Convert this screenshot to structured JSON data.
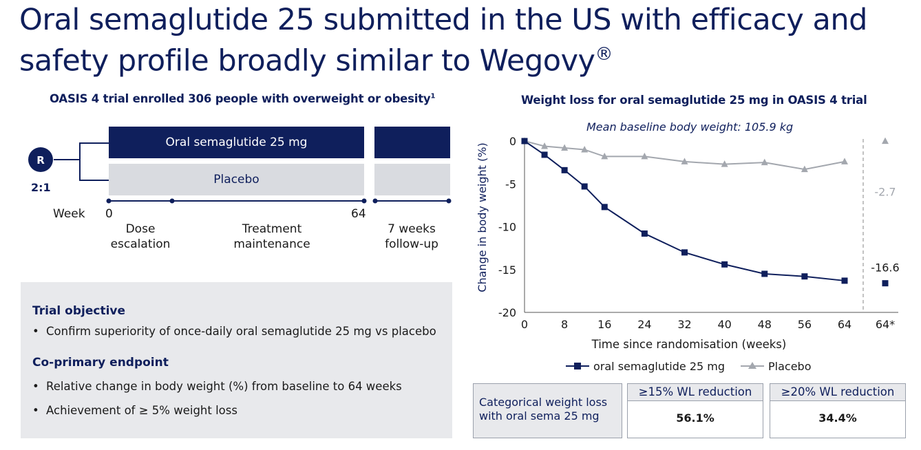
{
  "title": "Oral semaglutide 25 submitted in the US with efficacy and safety profile broadly similar to Wegovy",
  "title_mark": "®",
  "trial": {
    "heading": "OASIS 4 trial enrolled 306 people with overweight or obesity",
    "heading_sup": "1",
    "randomisation_badge": "R",
    "ratio": "2:1",
    "arms": [
      "Oral semaglutide 25 mg",
      "Placebo"
    ],
    "week_label": "Week",
    "week_start": "0",
    "week_end": "64",
    "phases": [
      {
        "line1": "Dose",
        "line2": "escalation"
      },
      {
        "line1": "Treatment",
        "line2": "maintenance"
      },
      {
        "line1": "7 weeks",
        "line2": "follow-up"
      }
    ],
    "colors": {
      "treatment": "#0f1f5c",
      "placebo": "#d9dbe0"
    }
  },
  "objective_box": {
    "objective_heading": "Trial objective",
    "objective_items": [
      "Confirm superiority of once-daily oral semaglutide 25 mg vs placebo"
    ],
    "endpoint_heading": "Co-primary endpoint",
    "endpoint_items": [
      "Relative change in body weight (%) from baseline to 64 weeks",
      "Achievement of ≥ 5% weight loss"
    ],
    "bullet": "•"
  },
  "chart_data": {
    "type": "line",
    "title": "Weight loss for oral semaglutide 25 mg in OASIS 4 trial",
    "subtitle": "Mean baseline body weight: 105.9 kg",
    "xlabel": "Time since randomisation (weeks)",
    "ylabel": "Change in body weight (%)",
    "xlim": [
      0,
      64
    ],
    "ylim": [
      -20,
      0
    ],
    "xticks": [
      "0",
      "8",
      "16",
      "24",
      "32",
      "40",
      "48",
      "56",
      "64"
    ],
    "yticks": [
      "0",
      "-5",
      "-10",
      "-15",
      "-20"
    ],
    "extra_xtick": "64*",
    "grid": false,
    "legend": "bottom",
    "series": [
      {
        "name": "oral semaglutide 25 mg",
        "color": "#0f1f5c",
        "marker": "square",
        "x": [
          0,
          4,
          8,
          12,
          16,
          24,
          32,
          40,
          48,
          56,
          64
        ],
        "values": [
          0,
          -1.6,
          -3.4,
          -5.3,
          -7.7,
          -10.8,
          -13.0,
          -14.4,
          -15.5,
          -15.8,
          -16.3
        ],
        "endpoint_value": -16.6,
        "endpoint_label": "-16.6"
      },
      {
        "name": "Placebo",
        "color": "#a3a7ae",
        "marker": "triangle",
        "x": [
          0,
          4,
          8,
          12,
          16,
          24,
          32,
          40,
          48,
          56,
          64
        ],
        "values": [
          0,
          -0.6,
          -0.8,
          -1.0,
          -1.8,
          -1.8,
          -2.4,
          -2.7,
          -2.5,
          -3.3,
          -2.4
        ],
        "endpoint_value": -2.7,
        "endpoint_label": "-2.7"
      }
    ]
  },
  "categorical": {
    "label": "Categorical weight loss with oral sema 25 mg",
    "columns": [
      {
        "header": "≥15% WL reduction",
        "value": "56.1%"
      },
      {
        "header": "≥20% WL reduction",
        "value": "34.4%"
      }
    ]
  }
}
